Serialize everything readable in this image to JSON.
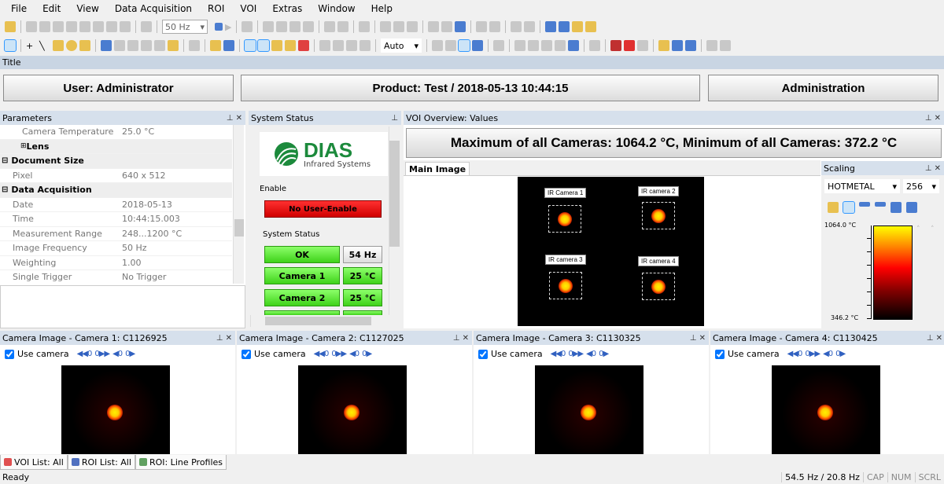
{
  "menu": [
    "File",
    "Edit",
    "View",
    "Data Acquisition",
    "ROI",
    "VOI",
    "Extras",
    "Window",
    "Help"
  ],
  "toolbar": {
    "frequency": "50 Hz",
    "zoom_mode": "Auto"
  },
  "title_bar": "Title",
  "header": {
    "user": "User: Administrator",
    "product": "Product: Test / 2018-05-13 10:44:15",
    "admin": "Administration"
  },
  "parameters": {
    "title": "Parameters",
    "rows": [
      {
        "k": "Camera Temperature",
        "v": "25.0 °C",
        "type": "sub"
      },
      {
        "k": "Lens",
        "v": "",
        "type": "group"
      },
      {
        "k": "Document Size",
        "v": "",
        "type": "cat"
      },
      {
        "k": "Pixel",
        "v": "640 x 512"
      },
      {
        "k": "Data Acquisition",
        "v": "",
        "type": "cat"
      },
      {
        "k": "Date",
        "v": "2018-05-13"
      },
      {
        "k": "Time",
        "v": "10:44:15.003"
      },
      {
        "k": "Measurement Range",
        "v": "248...1200 °C"
      },
      {
        "k": "Image Frequency",
        "v": "50 Hz"
      },
      {
        "k": "Weighting",
        "v": "1.00"
      },
      {
        "k": "Single Trigger",
        "v": "No Trigger"
      }
    ]
  },
  "system_status": {
    "title": "System Status",
    "logo_main": "DIAS",
    "logo_sub": "Infrared Systems",
    "enable_label": "Enable",
    "enable_button": "No User-Enable",
    "status_label": "System Status",
    "ok": "OK",
    "rate": "54 Hz",
    "cameras": [
      {
        "name": "Camera 1",
        "temp": "25 °C"
      },
      {
        "name": "Camera 2",
        "temp": "25 °C"
      }
    ]
  },
  "voi": {
    "title": "VOI Overview: Values",
    "summary": "Maximum of all Cameras: 1064.2 °C, Minimum of all Cameras: 372.2 °C",
    "tab": "Main Image",
    "labels": [
      "IR Camera 1",
      "IR camera 2",
      "IR camera 3",
      "IR camera 4"
    ]
  },
  "scaling": {
    "title": "Scaling",
    "palette": "HOTMETAL",
    "levels": "256",
    "max": "1064.0 °C",
    "min": "346.2 °C"
  },
  "cameras": [
    {
      "title": "Camera Image - Camera 1: C1126925",
      "use": "Use camera",
      "checked": true
    },
    {
      "title": "Camera Image - Camera 2: C1127025",
      "use": "Use camera",
      "checked": true
    },
    {
      "title": "Camera Image - Camera 3: C1130325",
      "use": "Use camera",
      "checked": true
    },
    {
      "title": "Camera Image - Camera 4: C1130425",
      "use": "Use camera",
      "checked": true
    }
  ],
  "bottom_tabs": [
    "VOI List: All",
    "ROI List: All",
    "ROI: Line Profiles"
  ],
  "status": {
    "text": "Ready",
    "rate": "54.5 Hz / 20.8 Hz",
    "cap": "CAP",
    "num": "NUM",
    "scrl": "SCRL"
  }
}
